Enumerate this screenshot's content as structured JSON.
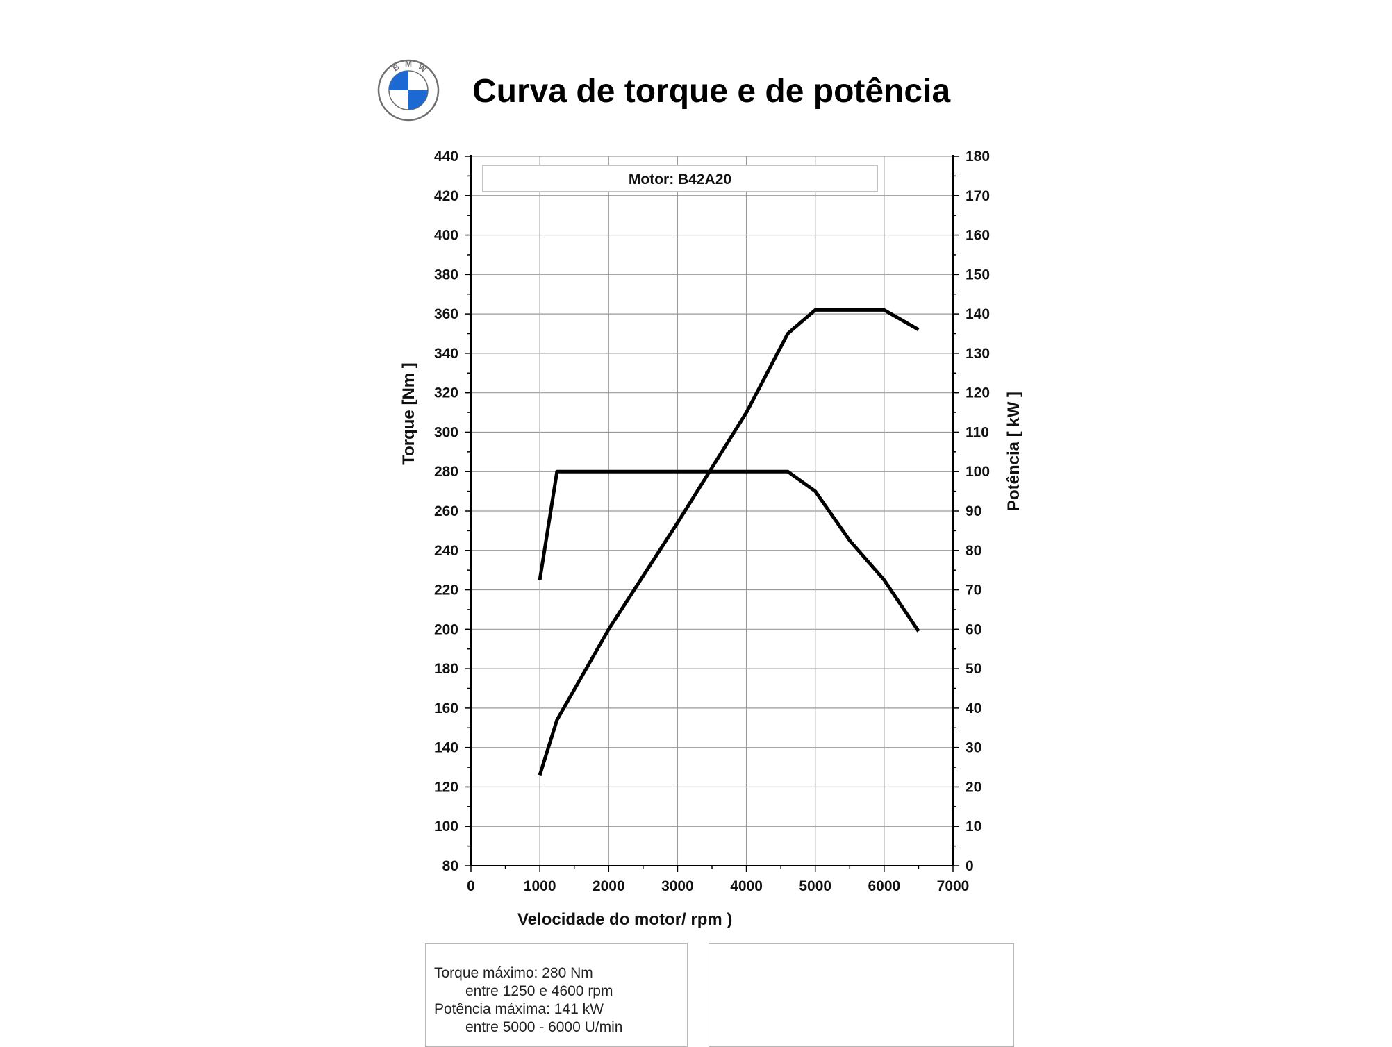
{
  "header": {
    "title": "Curva de torque e de potência",
    "logo_letters": "BMW",
    "logo_colors": {
      "blue": "#1c69d4",
      "ring": "#6f6f6f",
      "white": "#ffffff"
    }
  },
  "chart_data": {
    "type": "line",
    "annotation": "Motor: B42A20",
    "xlabel": "Velocidade do motor/ rpm )",
    "ylabel_left": "Torque  [Nm ]",
    "ylabel_right": "Potência  [ kW ]",
    "xlim": [
      0,
      7000
    ],
    "ylim_left": [
      80,
      440
    ],
    "ylim_right": [
      0,
      180
    ],
    "x_ticks": [
      "0",
      "1000",
      "2000",
      "3000",
      "4000",
      "5000",
      "6000",
      "7000"
    ],
    "y_left_ticks": [
      "80",
      "100",
      "120",
      "140",
      "160",
      "180",
      "200",
      "220",
      "240",
      "260",
      "280",
      "300",
      "320",
      "340",
      "360",
      "380",
      "400",
      "420",
      "440"
    ],
    "y_right_ticks": [
      "0",
      "10",
      "20",
      "30",
      "40",
      "50",
      "60",
      "70",
      "80",
      "90",
      "100",
      "110",
      "120",
      "130",
      "140",
      "150",
      "160",
      "170",
      "180"
    ],
    "grid": true,
    "series": [
      {
        "axis": "left",
        "color": "#000000",
        "points": [
          [
            1000,
            225
          ],
          [
            1250,
            280
          ],
          [
            4600,
            280
          ],
          [
            5000,
            270
          ],
          [
            5500,
            245
          ],
          [
            6000,
            225
          ],
          [
            6500,
            199
          ]
        ]
      },
      {
        "axis": "right",
        "color": "#000000",
        "points": [
          [
            1000,
            23
          ],
          [
            1250,
            37
          ],
          [
            2000,
            60
          ],
          [
            3000,
            87
          ],
          [
            4000,
            115
          ],
          [
            4600,
            135
          ],
          [
            5000,
            141
          ],
          [
            6000,
            141
          ],
          [
            6500,
            136
          ]
        ]
      }
    ]
  },
  "info": {
    "lines": [
      "Torque máximo: 280 Nm",
      "entre 1250 e 4600 rpm",
      "Potência máxima: 141 kW",
      "entre 5000 - 6000 U/min"
    ]
  }
}
